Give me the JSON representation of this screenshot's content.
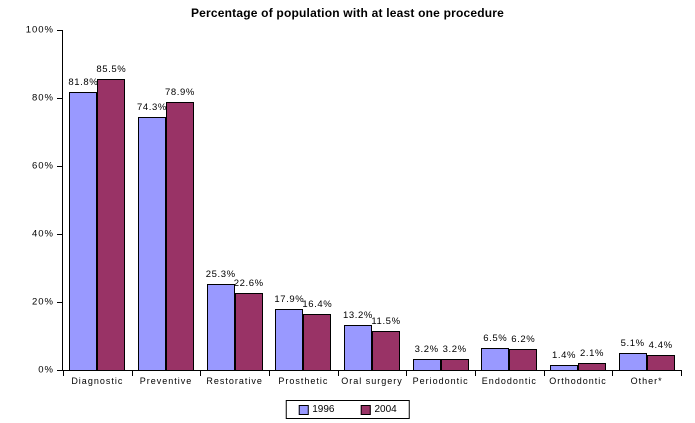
{
  "chart_data": {
    "type": "bar",
    "title": "Percentage of population with at least one procedure",
    "categories": [
      "Diagnostic",
      "Preventive",
      "Restorative",
      "Prosthetic",
      "Oral surgery",
      "Periodontic",
      "Endodontic",
      "Orthodontic",
      "Other*"
    ],
    "series": [
      {
        "name": "1996",
        "color": "#9999FF",
        "values": [
          81.8,
          74.3,
          25.3,
          17.9,
          13.2,
          3.2,
          6.5,
          1.4,
          5.1
        ]
      },
      {
        "name": "2004",
        "color": "#993366",
        "values": [
          85.5,
          78.9,
          22.6,
          16.4,
          11.5,
          3.2,
          6.2,
          2.1,
          4.4
        ]
      }
    ],
    "data_labels": {
      "series_1996": [
        "81.8%",
        "74.3%",
        "25.3%",
        "17.9%",
        "13.2%",
        "3.2%",
        "6.5%",
        "1.4%",
        "5.1%"
      ],
      "series_2004": [
        "85.5%",
        "78.9%",
        "22.6%",
        "16.4%",
        "11.5%",
        "3.2%",
        "6.2%",
        "2.1%",
        "4.4%"
      ]
    },
    "xlabel": "",
    "ylabel": "",
    "ylim": [
      0,
      100
    ],
    "y_tick_labels": [
      "0%",
      "20%",
      "40%",
      "60%",
      "80%",
      "100%"
    ],
    "y_tick_values": [
      0,
      20,
      40,
      60,
      80,
      100
    ],
    "grid": false,
    "legend_position": "bottom-center",
    "colors": {
      "bar_border": "#000000",
      "axis": "#000000",
      "background": "#ffffff",
      "text": "#000000"
    }
  }
}
